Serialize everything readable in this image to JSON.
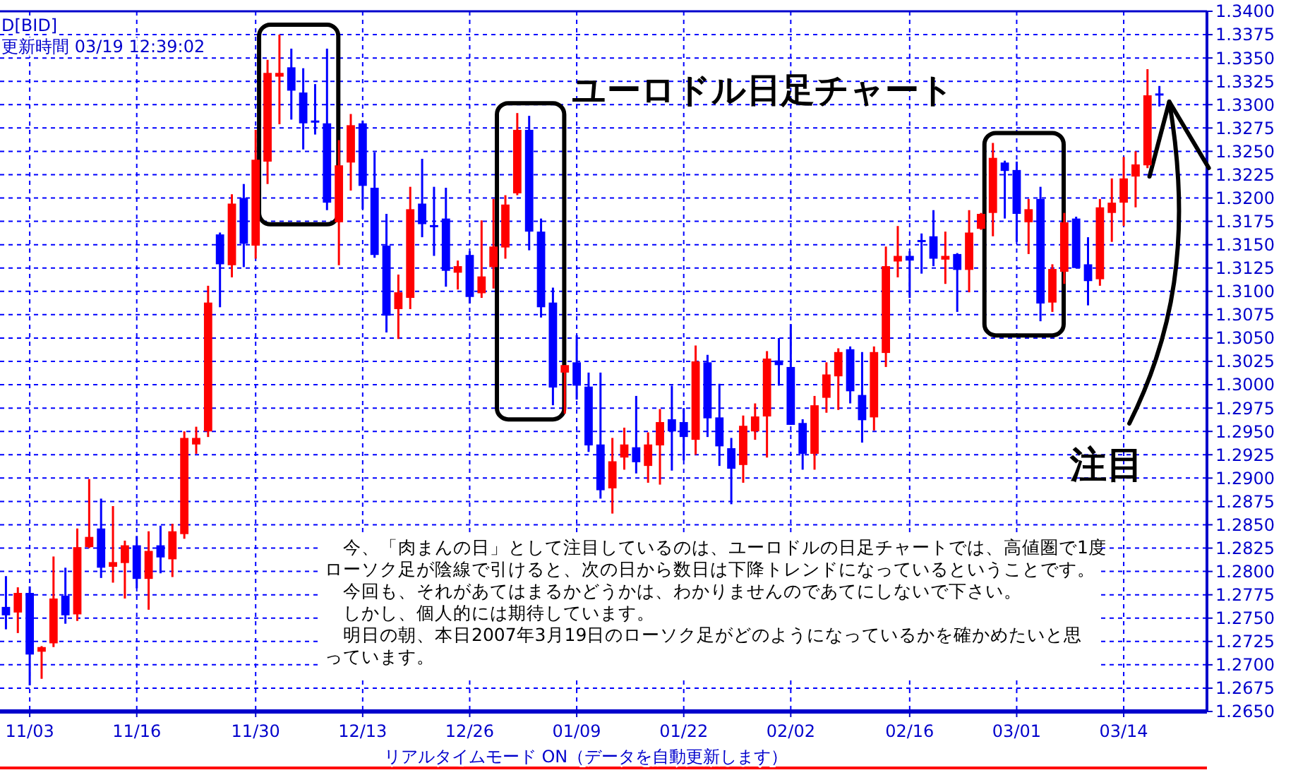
{
  "chart_data": {
    "type": "candlestick",
    "title": "ユーロドル日足チャート",
    "annotations": [
      "D[BID]",
      "更新時間 03/19 12:39:02",
      "注目",
      "　今、「肉まんの日」として注目しているのは、ユーロドルの日足チャートでは、高値圏で1度",
      "ローソク足が陰線で引けると、次の日から数日は下降トレンドになっているということです。",
      "　今回も、それがあてはまるかどうかは、わかりませんのであてにしないで下さい。",
      "　しかし、個人的には期待しています。",
      "　明日の朝、本日2007年3月19日のローソク足がどのようになっているかを確かめたいと思",
      "っています。",
      "リアルタイムモード ON（データを自動更新します）"
    ],
    "categories": [
      null,
      null,
      "11/03",
      null,
      null,
      null,
      null,
      null,
      null,
      null,
      null,
      "11/16",
      null,
      null,
      null,
      null,
      null,
      null,
      null,
      null,
      null,
      "11/30",
      null,
      null,
      null,
      null,
      null,
      null,
      null,
      null,
      "12/13",
      null,
      null,
      null,
      null,
      null,
      null,
      null,
      null,
      "12/26",
      null,
      null,
      null,
      null,
      null,
      null,
      null,
      null,
      "01/09",
      null,
      null,
      null,
      null,
      null,
      null,
      null,
      null,
      "01/22",
      null,
      null,
      null,
      null,
      null,
      null,
      null,
      null,
      "02/02",
      null,
      null,
      null,
      null,
      null,
      null,
      null,
      null,
      null,
      "02/16",
      null,
      null,
      null,
      null,
      null,
      null,
      null,
      null,
      "03/01",
      null,
      null,
      null,
      null,
      null,
      null,
      null,
      null,
      "03/14",
      null,
      null,
      null
    ],
    "ohlc": [
      [
        1.2762,
        1.2795,
        1.2738,
        1.2753
      ],
      [
        1.2756,
        1.2783,
        1.2734,
        1.2777
      ],
      [
        1.2777,
        1.2784,
        1.2678,
        1.2711
      ],
      [
        1.2714,
        1.272,
        1.2685,
        1.2719
      ],
      [
        1.2723,
        1.2816,
        1.2719,
        1.2771
      ],
      [
        1.2774,
        1.2804,
        1.2744,
        1.2753
      ],
      [
        1.2754,
        1.2846,
        1.2747,
        1.2826
      ],
      [
        1.2826,
        1.2899,
        1.2825,
        1.2837
      ],
      [
        1.2846,
        1.2878,
        1.2793,
        1.2804
      ],
      [
        1.2805,
        1.287,
        1.2788,
        1.281
      ],
      [
        1.2809,
        1.2833,
        1.2771,
        1.2828
      ],
      [
        1.2828,
        1.2838,
        1.2782,
        1.2792
      ],
      [
        1.2792,
        1.2843,
        1.2759,
        1.2822
      ],
      [
        1.2828,
        1.2849,
        1.2798,
        1.2815
      ],
      [
        1.2813,
        1.2851,
        1.2794,
        1.2843
      ],
      [
        1.284,
        1.295,
        1.2835,
        1.2943
      ],
      [
        1.2936,
        1.2955,
        1.2926,
        1.2943
      ],
      [
        1.295,
        1.3106,
        1.2944,
        1.3088
      ],
      [
        1.3161,
        1.3163,
        1.3083,
        1.3129
      ],
      [
        1.3128,
        1.3204,
        1.3115,
        1.3194
      ],
      [
        1.32,
        1.3215,
        1.3126,
        1.3151
      ],
      [
        1.3149,
        1.3273,
        1.3135,
        1.3241
      ],
      [
        1.3239,
        1.3348,
        1.3215,
        1.3334
      ],
      [
        1.333,
        1.3375,
        1.3279,
        1.3334
      ],
      [
        1.334,
        1.336,
        1.3284,
        1.3315
      ],
      [
        1.3313,
        1.3339,
        1.3252,
        1.328
      ],
      [
        1.3283,
        1.3322,
        1.3268,
        1.3282
      ],
      [
        1.328,
        1.336,
        1.3187,
        1.3195
      ],
      [
        1.3174,
        1.3262,
        1.3128,
        1.3235
      ],
      [
        1.3238,
        1.329,
        1.3208,
        1.3278
      ],
      [
        1.328,
        1.3283,
        1.3188,
        1.3213
      ],
      [
        1.3211,
        1.3249,
        1.3136,
        1.3139
      ],
      [
        1.3149,
        1.3183,
        1.3056,
        1.3074
      ],
      [
        1.3081,
        1.3118,
        1.3049,
        1.3099
      ],
      [
        1.3093,
        1.3212,
        1.3081,
        1.3188
      ],
      [
        1.3194,
        1.3242,
        1.3158,
        1.3172
      ],
      [
        1.3171,
        1.3212,
        1.3138,
        1.317
      ],
      [
        1.3178,
        1.3211,
        1.3105,
        1.3122
      ],
      [
        1.312,
        1.3133,
        1.3102,
        1.3127
      ],
      [
        1.3139,
        1.3143,
        1.3087,
        1.3094
      ],
      [
        1.3098,
        1.3176,
        1.3093,
        1.3116
      ],
      [
        1.3126,
        1.3199,
        1.3103,
        1.3148
      ],
      [
        1.3147,
        1.3203,
        1.3135,
        1.3193
      ],
      [
        1.3205,
        1.3291,
        1.3203,
        1.3273
      ],
      [
        1.3273,
        1.3288,
        1.3144,
        1.3164
      ],
      [
        1.3164,
        1.3178,
        1.3072,
        1.3083
      ],
      [
        1.3088,
        1.3104,
        1.2978,
        1.2997
      ],
      [
        1.3013,
        1.3021,
        1.2969,
        1.3021
      ],
      [
        1.3024,
        1.3053,
        1.2984,
        1.2999
      ],
      [
        1.2998,
        1.3013,
        1.2928,
        1.2935
      ],
      [
        1.2936,
        1.3013,
        1.2878,
        1.2887
      ],
      [
        1.2889,
        1.2943,
        1.2862,
        1.2918
      ],
      [
        1.2922,
        1.2954,
        1.2909,
        1.2936
      ],
      [
        1.2933,
        1.2988,
        1.2905,
        1.2917
      ],
      [
        1.2913,
        1.2949,
        1.2895,
        1.2936
      ],
      [
        1.2935,
        1.2974,
        1.2893,
        1.296
      ],
      [
        1.2963,
        1.2999,
        1.2908,
        1.295
      ],
      [
        1.296,
        1.2975,
        1.2919,
        1.2944
      ],
      [
        1.2941,
        1.3042,
        1.2925,
        1.3025
      ],
      [
        1.3024,
        1.3032,
        1.2944,
        1.2964
      ],
      [
        1.2965,
        1.3001,
        1.2913,
        1.2934
      ],
      [
        1.2932,
        1.2943,
        1.2872,
        1.291
      ],
      [
        1.2914,
        1.2967,
        1.2895,
        1.2956
      ],
      [
        1.295,
        1.298,
        1.2941,
        1.2966
      ],
      [
        1.2966,
        1.3036,
        1.2922,
        1.3028
      ],
      [
        1.3026,
        1.305,
        1.2999,
        1.3021
      ],
      [
        1.3019,
        1.3065,
        1.2957,
        1.2957
      ],
      [
        1.2959,
        1.2963,
        1.2909,
        1.2926
      ],
      [
        1.2926,
        1.2988,
        1.2909,
        1.2978
      ],
      [
        1.2986,
        1.3024,
        1.297,
        1.3011
      ],
      [
        1.3009,
        1.3039,
        1.2973,
        1.3035
      ],
      [
        1.3038,
        1.3041,
        1.298,
        1.2993
      ],
      [
        1.2989,
        1.3035,
        1.2938,
        1.2962
      ],
      [
        1.2965,
        1.3041,
        1.2951,
        1.3035
      ],
      [
        1.3034,
        1.3148,
        1.3019,
        1.3127
      ],
      [
        1.3132,
        1.317,
        1.3115,
        1.3138
      ],
      [
        1.3138,
        1.3143,
        1.3093,
        1.3133
      ],
      [
        1.3155,
        1.3162,
        1.3119,
        1.3153
      ],
      [
        1.3159,
        1.3187,
        1.3127,
        1.3135
      ],
      [
        1.3134,
        1.3164,
        1.3108,
        1.3138
      ],
      [
        1.314,
        1.3141,
        1.3078,
        1.3123
      ],
      [
        1.3123,
        1.3187,
        1.3099,
        1.3163
      ],
      [
        1.3167,
        1.3184,
        1.3166,
        1.3183
      ],
      [
        1.3184,
        1.3259,
        1.3159,
        1.3243
      ],
      [
        1.3238,
        1.324,
        1.3178,
        1.3229
      ],
      [
        1.323,
        1.3239,
        1.3153,
        1.3183
      ],
      [
        1.3174,
        1.3199,
        1.314,
        1.3188
      ],
      [
        1.3199,
        1.3212,
        1.3068,
        1.3087
      ],
      [
        1.3088,
        1.3129,
        1.3078,
        1.3124
      ],
      [
        1.3121,
        1.3184,
        1.3108,
        1.3174
      ],
      [
        1.3178,
        1.318,
        1.3125,
        1.3125
      ],
      [
        1.3129,
        1.3158,
        1.3085,
        1.3111
      ],
      [
        1.3113,
        1.3199,
        1.3106,
        1.319
      ],
      [
        1.3184,
        1.3221,
        1.3153,
        1.3195
      ],
      [
        1.3195,
        1.3244,
        1.317,
        1.3221
      ],
      [
        1.3223,
        1.325,
        1.319,
        1.3236
      ],
      [
        1.3235,
        1.3338,
        1.3232,
        1.331
      ],
      [
        1.3312,
        1.332,
        1.3298,
        1.331
      ]
    ],
    "colors": [
      "#0000ff",
      "#ff0000",
      "#0000ff",
      "#ff0000",
      "#ff0000",
      "#0000ff",
      "#ff0000",
      "#ff0000",
      "#0000ff",
      "#ff0000",
      "#ff0000",
      "#0000ff",
      "#ff0000",
      "#0000ff",
      "#ff0000",
      "#ff0000",
      "#ff0000",
      "#ff0000",
      "#0000ff",
      "#ff0000",
      "#0000ff",
      "#ff0000",
      "#ff0000",
      "#ff0000",
      "#0000ff",
      "#0000ff",
      "#0000ff",
      "#0000ff",
      "#ff0000",
      "#ff0000",
      "#0000ff",
      "#0000ff",
      "#0000ff",
      "#ff0000",
      "#ff0000",
      "#0000ff",
      "#0000ff",
      "#0000ff",
      "#ff0000",
      "#0000ff",
      "#ff0000",
      "#ff0000",
      "#ff0000",
      "#ff0000",
      "#0000ff",
      "#0000ff",
      "#0000ff",
      "#ff0000",
      "#0000ff",
      "#0000ff",
      "#0000ff",
      "#ff0000",
      "#ff0000",
      "#0000ff",
      "#ff0000",
      "#ff0000",
      "#0000ff",
      "#0000ff",
      "#ff0000",
      "#0000ff",
      "#0000ff",
      "#0000ff",
      "#ff0000",
      "#ff0000",
      "#ff0000",
      "#0000ff",
      "#0000ff",
      "#0000ff",
      "#ff0000",
      "#ff0000",
      "#ff0000",
      "#0000ff",
      "#0000ff",
      "#ff0000",
      "#ff0000",
      "#ff0000",
      "#0000ff",
      "#0000ff",
      "#0000ff",
      "#ff0000",
      "#0000ff",
      "#ff0000",
      "#ff0000",
      "#ff0000",
      "#0000ff",
      "#0000ff",
      "#ff0000",
      "#0000ff",
      "#ff0000",
      "#ff0000",
      "#0000ff",
      "#0000ff",
      "#ff0000",
      "#ff0000",
      "#ff0000",
      "#ff0000",
      "#ff0000",
      "#0000ff"
    ],
    "ylim": [
      1.265,
      1.34
    ],
    "yticks": [
      {
        "value": 1.265,
        "label": "1.2650"
      },
      {
        "value": 1.2675,
        "label": "1.2675"
      },
      {
        "value": 1.27,
        "label": "1.2700"
      },
      {
        "value": 1.2725,
        "label": "1.2725"
      },
      {
        "value": 1.275,
        "label": "1.2750"
      },
      {
        "value": 1.2775,
        "label": "1.2775"
      },
      {
        "value": 1.28,
        "label": "1.2800"
      },
      {
        "value": 1.2825,
        "label": "1.2825"
      },
      {
        "value": 1.285,
        "label": "1.2850"
      },
      {
        "value": 1.2875,
        "label": "1.2875"
      },
      {
        "value": 1.29,
        "label": "1.2900"
      },
      {
        "value": 1.2925,
        "label": "1.2925"
      },
      {
        "value": 1.295,
        "label": "1.2950"
      },
      {
        "value": 1.2975,
        "label": "1.2975"
      },
      {
        "value": 1.3,
        "label": "1.3000"
      },
      {
        "value": 1.3025,
        "label": "1.3025"
      },
      {
        "value": 1.305,
        "label": "1.3050"
      },
      {
        "value": 1.3075,
        "label": "1.3075"
      },
      {
        "value": 1.31,
        "label": "1.3100"
      },
      {
        "value": 1.3125,
        "label": "1.3125"
      },
      {
        "value": 1.315,
        "label": "1.3150"
      },
      {
        "value": 1.3175,
        "label": "1.3175"
      },
      {
        "value": 1.32,
        "label": "1.3200"
      },
      {
        "value": 1.3225,
        "label": "1.3225"
      },
      {
        "value": 1.325,
        "label": "1.3250"
      },
      {
        "value": 1.3275,
        "label": "1.3275"
      },
      {
        "value": 1.33,
        "label": "1.3300"
      },
      {
        "value": 1.3325,
        "label": "1.3325"
      },
      {
        "value": 1.335,
        "label": "1.3350"
      },
      {
        "value": 1.3375,
        "label": "1.3375"
      },
      {
        "value": 1.34,
        "label": "1.3400"
      }
    ],
    "grid": true
  }
}
